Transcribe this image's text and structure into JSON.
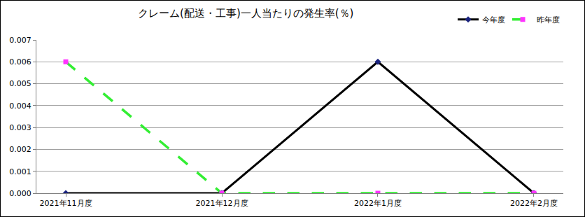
{
  "chart_data": {
    "type": "line",
    "title": "クレーム(配送・工事)一人当たりの発生率(％)",
    "categories": [
      "2021年11月度",
      "2021年12月度",
      "2022年1月度",
      "2022年2月度"
    ],
    "series": [
      {
        "name": "今年度",
        "color": "#000000",
        "marker": "diamond",
        "line_style": "solid",
        "values": [
          0,
          0,
          0.006,
          0
        ]
      },
      {
        "name": "昨年度",
        "color": "#33ee33",
        "marker": "square",
        "line_style": "dash",
        "values": [
          0.006,
          0,
          0,
          0
        ]
      }
    ],
    "ylim": [
      0,
      0.007
    ],
    "yticks": [
      {
        "value": 0,
        "label": "0.000"
      },
      {
        "value": 0.001,
        "label": "0.001"
      },
      {
        "value": 0.002,
        "label": "0.002"
      },
      {
        "value": 0.003,
        "label": "0.003"
      },
      {
        "value": 0.004,
        "label": "0.004"
      },
      {
        "value": 0.005,
        "label": "0.005"
      },
      {
        "value": 0.006,
        "label": "0.006"
      },
      {
        "value": 0.007,
        "label": "0.007"
      }
    ],
    "grid": true,
    "legend": "top-right"
  }
}
